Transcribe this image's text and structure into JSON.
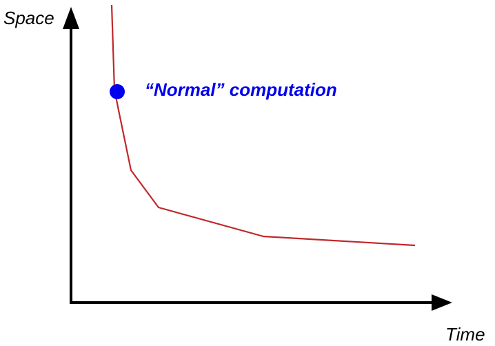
{
  "axes": {
    "y_label": "Space",
    "x_label": "Time",
    "axis_color": "#000000"
  },
  "curve": {
    "color": "#c0282a"
  },
  "marker": {
    "label": "“Normal” computation",
    "color": "#0000ee",
    "label_color": "#0000ee"
  }
}
